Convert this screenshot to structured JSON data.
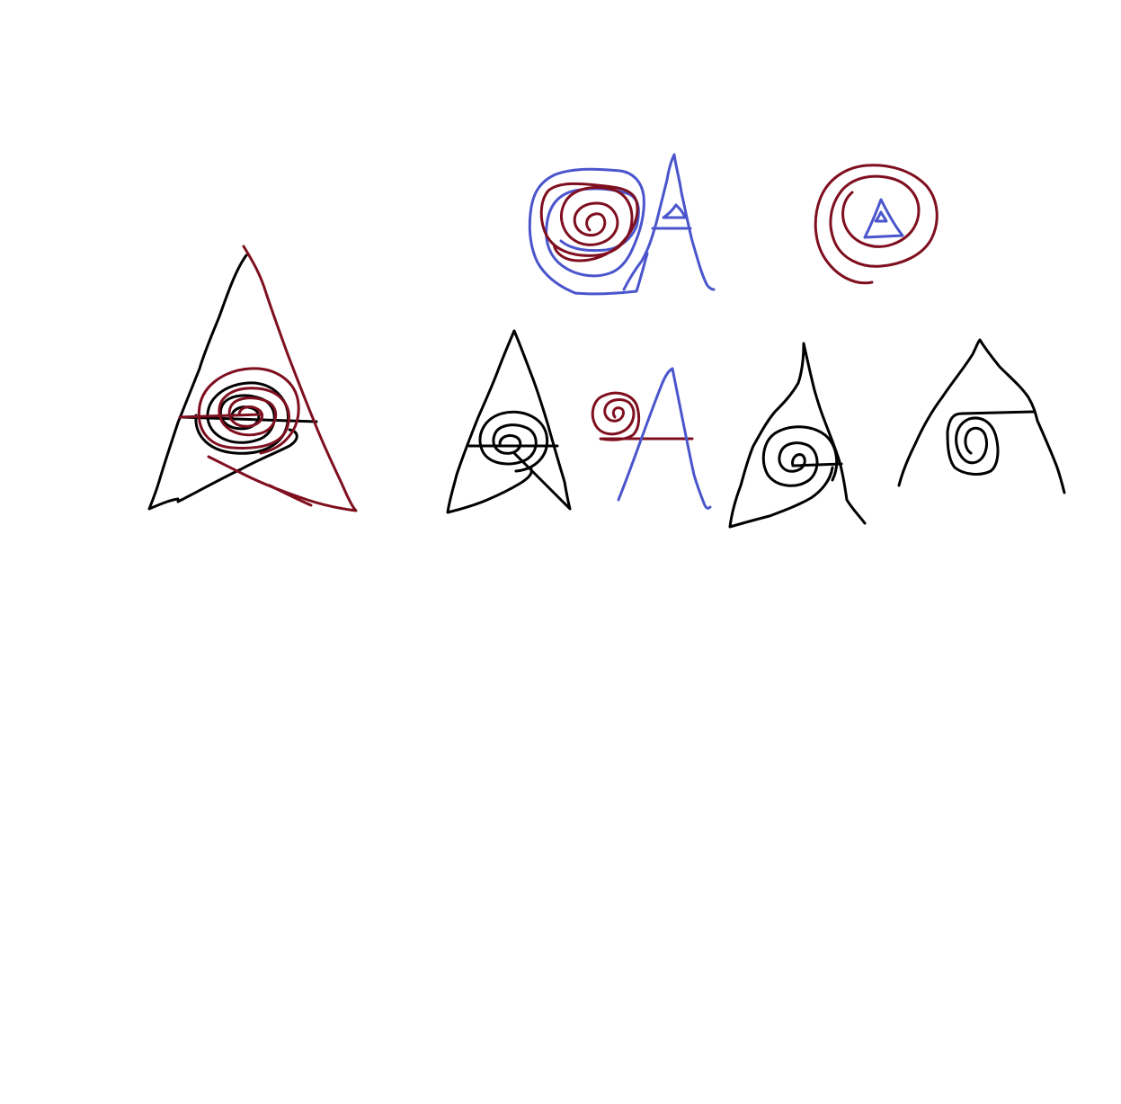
{
  "palette": {
    "background": "#ffffff",
    "black_ink": "#000000",
    "red_ink": "#7f0f1f",
    "blue_ink": "#4a55cc"
  },
  "drawings": [
    {
      "id": "large-triangle-with-spirals",
      "shape": "triangle + spirals",
      "inks": [
        "black_ink",
        "red_ink"
      ]
    },
    {
      "id": "blue-box-red-spiral",
      "shape": "spiral",
      "inks": [
        "blue_ink",
        "red_ink"
      ]
    },
    {
      "id": "blue-letter-a",
      "shape": "letter A",
      "inks": [
        "blue_ink"
      ]
    },
    {
      "id": "red-spiral-with-triangle",
      "shape": "spiral + triangle",
      "inks": [
        "red_ink",
        "blue_ink"
      ]
    },
    {
      "id": "black-triangle-spiral",
      "shape": "triangle + spiral",
      "inks": [
        "black_ink"
      ]
    },
    {
      "id": "small-red-spiral-letter-a",
      "shape": "spiral + letter A",
      "inks": [
        "red_ink",
        "blue_ink"
      ]
    },
    {
      "id": "black-triangle-spiral-2",
      "shape": "triangle + spiral",
      "inks": [
        "black_ink"
      ]
    },
    {
      "id": "black-arch-spiral",
      "shape": "arch + spiral",
      "inks": [
        "black_ink"
      ]
    }
  ]
}
